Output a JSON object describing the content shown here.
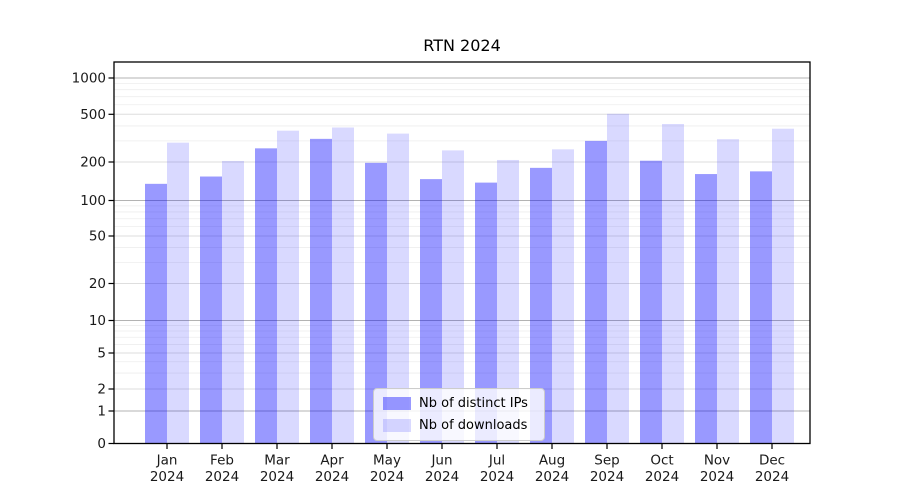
{
  "title": "RTN 2024",
  "colors": {
    "bar_distinct_ips": "rgba(0,0,255,0.4)",
    "bar_downloads": "rgba(0,0,255,0.15)",
    "grid_decade": "#b3b3b3",
    "grid_labeled": "#dedede",
    "grid_minor": "#eeeeee",
    "spine": "#000000",
    "tick_label": "#1a1a1a",
    "legend_border": "#cccccc"
  },
  "legend": {
    "items": [
      {
        "label": "Nb of distinct IPs",
        "color": "rgba(0,0,255,0.4)"
      },
      {
        "label": "Nb of downloads",
        "color": "rgba(0,0,255,0.15)"
      }
    ],
    "position": "lower center"
  },
  "chart_data": {
    "type": "bar",
    "title": "RTN 2024",
    "categories": [
      "Jan 2024",
      "Feb 2024",
      "Mar 2024",
      "Apr 2024",
      "May 2024",
      "Jun 2024",
      "Jul 2024",
      "Aug 2024",
      "Sep 2024",
      "Oct 2024",
      "Nov 2024",
      "Dec 2024"
    ],
    "x_tick_months": [
      "Jan",
      "Feb",
      "Mar",
      "Apr",
      "May",
      "Jun",
      "Jul",
      "Aug",
      "Sep",
      "Oct",
      "Nov",
      "Dec"
    ],
    "x_tick_year": "2024",
    "series": [
      {
        "name": "Nb of distinct IPs",
        "values": [
          135,
          154,
          260,
          312,
          197,
          147,
          138,
          180,
          300,
          205,
          161,
          169
        ]
      },
      {
        "name": "Nb of downloads",
        "values": [
          290,
          204,
          365,
          388,
          345,
          250,
          208,
          255,
          505,
          415,
          310,
          379
        ]
      }
    ],
    "yscale": "symlog",
    "ylabel": "",
    "xlabel": "",
    "y_ticks": [
      0,
      1,
      2,
      5,
      10,
      20,
      50,
      100,
      200,
      500,
      1000
    ],
    "y_minor_ticks": [
      3,
      4,
      6,
      7,
      8,
      9,
      30,
      40,
      60,
      70,
      80,
      90,
      300,
      400,
      600,
      700,
      800,
      900
    ],
    "ylim": [
      0,
      1360
    ],
    "grid": true,
    "legend_position": "lower center"
  }
}
